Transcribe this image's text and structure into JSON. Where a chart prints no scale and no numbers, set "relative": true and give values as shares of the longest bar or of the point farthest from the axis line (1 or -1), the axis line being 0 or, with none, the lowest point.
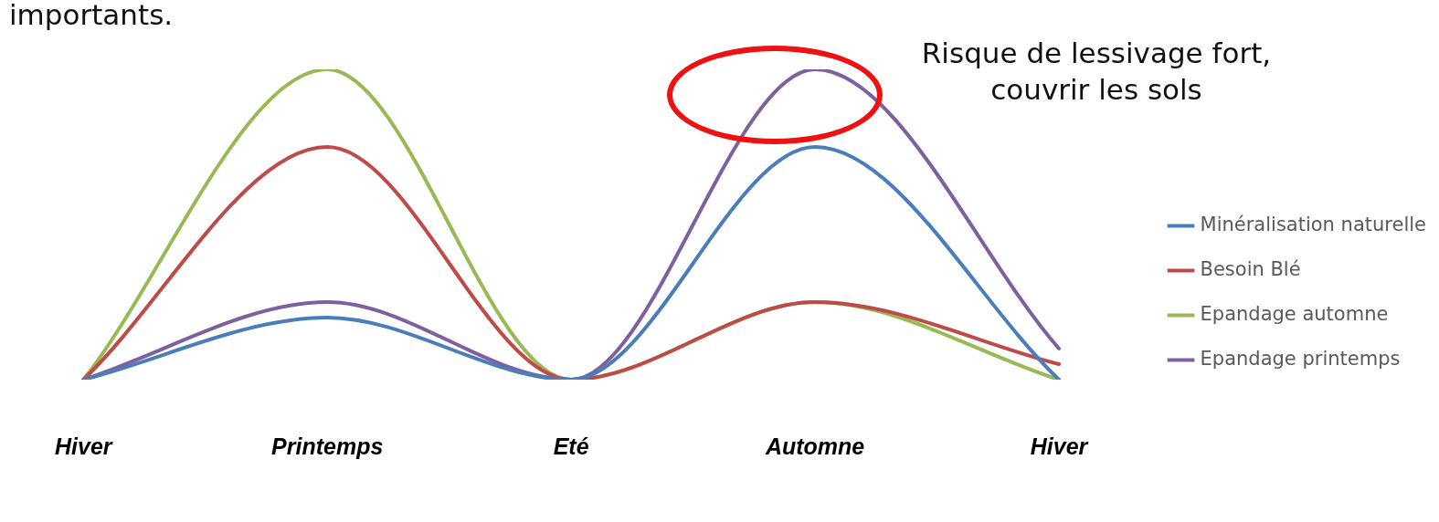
{
  "chart_data": {
    "type": "line",
    "relative": true,
    "categories": [
      "Hiver",
      "Printemps",
      "Eté",
      "Automne",
      "Hiver"
    ],
    "series": [
      {
        "name": "Minéralisation naturelle",
        "color": "#4a7ebb",
        "values": [
          0,
          0.2,
          0,
          0.75,
          0
        ]
      },
      {
        "name": "Besoin Blé",
        "color": "#be4b48",
        "values": [
          0,
          0.75,
          0,
          0.25,
          0.05
        ]
      },
      {
        "name": "Epandage automne",
        "color": "#98b954",
        "values": [
          0,
          1,
          0,
          0.25,
          0
        ]
      },
      {
        "name": "Epandage printemps",
        "color": "#7d60a0",
        "values": [
          0,
          0.25,
          0,
          1,
          0.1
        ]
      }
    ],
    "legend": "right",
    "grid": false,
    "marker": "none",
    "line_style": "solid",
    "annotations": [
      "importants.",
      "Risque de lessivage fort, couvrir les sols"
    ]
  }
}
